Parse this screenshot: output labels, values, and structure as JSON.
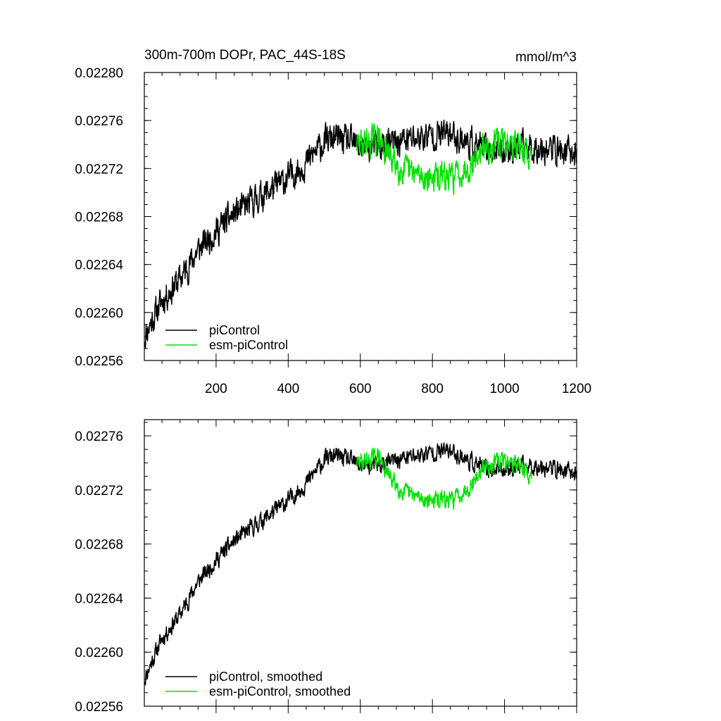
{
  "chart_data": [
    {
      "type": "line",
      "title": "300m-700m DOPr, PAC_44S-18S",
      "units_label": "mmol/m^3",
      "xlim": [
        1,
        1200
      ],
      "ylim": [
        0.02256,
        0.0228
      ],
      "x_tick_labels": [
        "200",
        "400",
        "600",
        "800",
        "1000",
        "1200"
      ],
      "y_tick_labels": [
        "0.02280",
        "0.02276",
        "0.02272",
        "0.02268",
        "0.02264",
        "0.02260",
        "0.02256"
      ],
      "legend": {
        "placement": "bottom-left",
        "entries": [
          "piControl",
          "esm-piControl"
        ]
      },
      "series": [
        {
          "name": "piControl",
          "color": "#000000",
          "x_start": 1,
          "x_end": 1200,
          "noise": 1.05e-05,
          "seed": 11,
          "trend": [
            [
              1,
              0.02258
            ],
            [
              20,
              0.022592
            ],
            [
              50,
              0.02261
            ],
            [
              100,
              0.022628
            ],
            [
              150,
              0.022652
            ],
            [
              200,
              0.022668
            ],
            [
              250,
              0.022682
            ],
            [
              300,
              0.022692
            ],
            [
              350,
              0.022702
            ],
            [
              400,
              0.022712
            ],
            [
              450,
              0.022725
            ],
            [
              500,
              0.022742
            ],
            [
              520,
              0.022745
            ],
            [
              550,
              0.022744
            ],
            [
              600,
              0.022738
            ],
            [
              650,
              0.022738
            ],
            [
              700,
              0.022742
            ],
            [
              800,
              0.022748
            ],
            [
              850,
              0.022749
            ],
            [
              900,
              0.022742
            ],
            [
              950,
              0.022735
            ],
            [
              1000,
              0.022736
            ],
            [
              1100,
              0.022738
            ],
            [
              1200,
              0.022732
            ]
          ]
        },
        {
          "name": "esm-piControl",
          "color": "#00e000",
          "x_start": 590,
          "x_end": 1075,
          "noise": 1.05e-05,
          "seed": 29,
          "trend": [
            [
              590,
              0.02274
            ],
            [
              620,
              0.022742
            ],
            [
              650,
              0.022745
            ],
            [
              680,
              0.02273
            ],
            [
              720,
              0.022718
            ],
            [
              780,
              0.022713
            ],
            [
              850,
              0.022712
            ],
            [
              900,
              0.022722
            ],
            [
              950,
              0.022738
            ],
            [
              1000,
              0.022742
            ],
            [
              1050,
              0.022737
            ],
            [
              1075,
              0.022727
            ]
          ]
        }
      ]
    },
    {
      "type": "line",
      "xlim": [
        1,
        1200
      ],
      "ylim": [
        0.02256,
        0.022772
      ],
      "y_tick_labels": [
        "0.02276",
        "0.02272",
        "0.02268",
        "0.02264",
        "0.02260",
        "0.02256"
      ],
      "legend": {
        "placement": "bottom-left",
        "entries": [
          "piControl, smoothed",
          "esm-piControl, smoothed"
        ]
      },
      "series": [
        {
          "name": "piControl, smoothed",
          "color": "#000000",
          "x_start": 1,
          "x_end": 1200,
          "noise": 5.5e-06,
          "seed": 11,
          "trend": [
            [
              1,
              0.02258
            ],
            [
              20,
              0.022592
            ],
            [
              50,
              0.02261
            ],
            [
              100,
              0.022628
            ],
            [
              150,
              0.022652
            ],
            [
              200,
              0.022668
            ],
            [
              250,
              0.022682
            ],
            [
              300,
              0.022692
            ],
            [
              350,
              0.022702
            ],
            [
              400,
              0.022712
            ],
            [
              450,
              0.022725
            ],
            [
              500,
              0.022742
            ],
            [
              520,
              0.022745
            ],
            [
              550,
              0.022744
            ],
            [
              600,
              0.022738
            ],
            [
              650,
              0.022738
            ],
            [
              700,
              0.022742
            ],
            [
              800,
              0.022748
            ],
            [
              850,
              0.022749
            ],
            [
              900,
              0.022742
            ],
            [
              950,
              0.022735
            ],
            [
              1000,
              0.022736
            ],
            [
              1100,
              0.022738
            ],
            [
              1200,
              0.022732
            ]
          ]
        },
        {
          "name": "esm-piControl, smoothed",
          "color": "#00e000",
          "x_start": 590,
          "x_end": 1075,
          "noise": 5.5e-06,
          "seed": 29,
          "trend": [
            [
              590,
              0.02274
            ],
            [
              620,
              0.022742
            ],
            [
              650,
              0.022745
            ],
            [
              680,
              0.02273
            ],
            [
              720,
              0.022718
            ],
            [
              780,
              0.022713
            ],
            [
              850,
              0.022712
            ],
            [
              900,
              0.022722
            ],
            [
              950,
              0.022738
            ],
            [
              1000,
              0.022742
            ],
            [
              1050,
              0.022737
            ],
            [
              1075,
              0.022727
            ]
          ]
        }
      ]
    }
  ]
}
